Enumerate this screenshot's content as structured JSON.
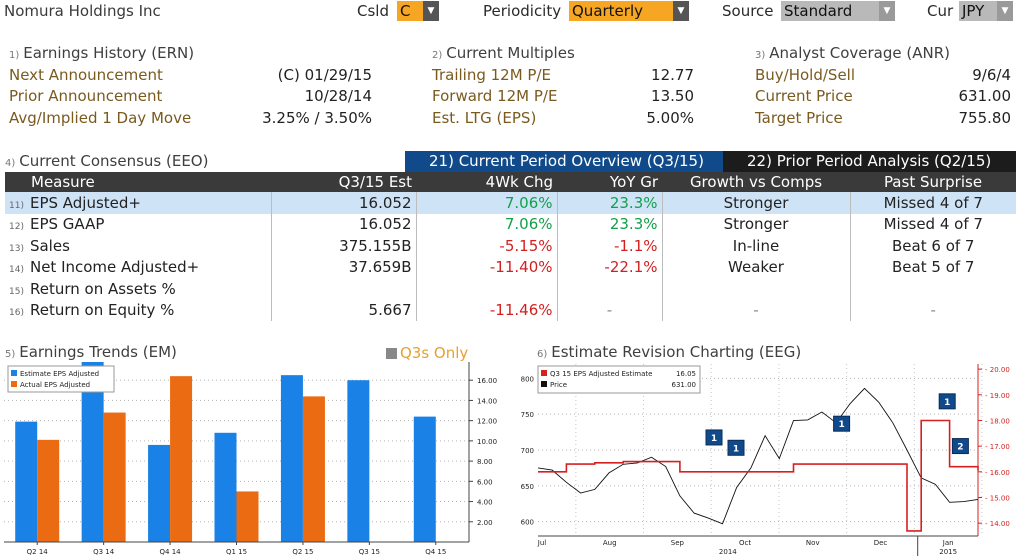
{
  "header": {
    "company": "Nomura Holdings Inc",
    "csld_label": "Csld",
    "csld_value": "C",
    "periodicity_label": "Periodicity",
    "periodicity_value": "Quarterly",
    "source_label": "Source",
    "source_value": "Standard",
    "cur_label": "Cur",
    "cur_value": "JPY"
  },
  "earnings_history": {
    "num": "1)",
    "title": "Earnings History (ERN)",
    "rows": [
      {
        "label": "Next Announcement",
        "value": "(C)  01/29/15"
      },
      {
        "label": "Prior Announcement",
        "value": "10/28/14"
      },
      {
        "label": "Avg/Implied 1 Day Move",
        "value": "3.25% / 3.50%"
      }
    ]
  },
  "current_multiples": {
    "num": "2)",
    "title": "Current Multiples",
    "rows": [
      {
        "label": "Trailing 12M P/E",
        "value": "12.77"
      },
      {
        "label": "Forward 12M P/E",
        "value": "13.50"
      },
      {
        "label": "Est. LTG (EPS)",
        "value": "5.00%"
      }
    ]
  },
  "analyst_coverage": {
    "num": "3)",
    "title": "Analyst Coverage (ANR)",
    "rows": [
      {
        "label": "Buy/Hold/Sell",
        "value": "9/6/4"
      },
      {
        "label": "Current Price",
        "value": "631.00"
      },
      {
        "label": "Target Price",
        "value": "755.80"
      }
    ]
  },
  "consensus": {
    "num": "4)",
    "title": "Current Consensus (EEO)",
    "tab_active": "21) Current Period Overview (Q3/15)",
    "tab_inactive": "22) Prior Period Analysis (Q2/15)",
    "columns": [
      "Measure",
      "Q3/15 Est",
      "4Wk Chg",
      "YoY Gr",
      "Growth vs Comps",
      "Past Surprise"
    ],
    "rows": [
      {
        "n": "11)",
        "measure": "EPS Adjusted+",
        "est": "16.052",
        "chg": "7.06%",
        "yoy": "23.3%",
        "growth": "Stronger",
        "surprise": "Missed 4 of 7"
      },
      {
        "n": "12)",
        "measure": "EPS GAAP",
        "est": "16.052",
        "chg": "7.06%",
        "yoy": "23.3%",
        "growth": "Stronger",
        "surprise": "Missed 4 of 7"
      },
      {
        "n": "13)",
        "measure": "Sales",
        "est": "375.155B",
        "chg": "-5.15%",
        "yoy": "-1.1%",
        "growth": "In-line",
        "surprise": "Beat 6 of 7"
      },
      {
        "n": "14)",
        "measure": "Net Income Adjusted+",
        "est": "37.659B",
        "chg": "-11.40%",
        "yoy": "-22.1%",
        "growth": "Weaker",
        "surprise": "Beat 5 of 7"
      },
      {
        "n": "15)",
        "measure": "Return on Assets %",
        "est": "",
        "chg": "",
        "yoy": "",
        "growth": "",
        "surprise": ""
      },
      {
        "n": "16)",
        "measure": "Return on Equity %",
        "est": "5.667",
        "chg": "-11.46%",
        "yoy": "-",
        "growth": "-",
        "surprise": "-"
      }
    ]
  },
  "earnings_trends": {
    "num": "5)",
    "title": "Earnings Trends (EM)",
    "q3s_label": "Q3s Only"
  },
  "estimate_revision": {
    "num": "6)",
    "title": "Estimate Revision Charting (EEG)"
  },
  "colors": {
    "estimate": "#1a82e6",
    "actual": "#ea6b12",
    "red_line": "#d62020",
    "accent_orange": "#f6a623",
    "tab_active": "#114a8a"
  },
  "chart_data": [
    {
      "type": "bar",
      "categories": [
        "Q2 14",
        "Q3 14",
        "Q4 14",
        "Q1 15",
        "Q2 15",
        "Q3 15",
        "Q4 15"
      ],
      "series": [
        {
          "name": "Estimate EPS Adjusted",
          "values": [
            11.9,
            17.8,
            9.6,
            10.8,
            16.5,
            16.0,
            12.4
          ]
        },
        {
          "name": "Actual EPS Adjusted",
          "values": [
            10.1,
            12.8,
            16.4,
            5.0,
            14.4,
            null,
            null
          ]
        }
      ],
      "legend": [
        {
          "label": "Estimate EPS Adjusted"
        },
        {
          "label": "Actual EPS Adjusted"
        }
      ],
      "ylim": [
        0,
        17.8
      ],
      "yticks": [
        "2.00",
        "4.00",
        "6.00",
        "8.00",
        "10.00",
        "12.00",
        "14.00",
        "16.00"
      ],
      "ytick_values": [
        2,
        4,
        6,
        8,
        10,
        12,
        14,
        16
      ],
      "legend_position": "top-left",
      "grid": true
    },
    {
      "type": "line",
      "x_labels": [
        "Jul",
        "Aug",
        "Sep",
        "Oct",
        "Nov",
        "Dec",
        "Jan"
      ],
      "x_year_labels": [
        "2014",
        "2015"
      ],
      "series": [
        {
          "name": "Q3 15 EPS Adjusted Estimate",
          "legend_value": "16.05",
          "axis": "right",
          "values": [
            16.0,
            16.0,
            16.3,
            16.3,
            16.35,
            16.35,
            16.4,
            16.4,
            16.4,
            16.4,
            16.0,
            16.0,
            16.0,
            16.0,
            16.0,
            16.0,
            16.0,
            16.0,
            16.3,
            16.3,
            16.3,
            16.3,
            16.3,
            16.3,
            16.3,
            16.3,
            13.7,
            18.0,
            18.0,
            16.2,
            16.2,
            16.05
          ]
        },
        {
          "name": "Price",
          "legend_value": "631.00",
          "axis": "left",
          "values": [
            675,
            672,
            655,
            640,
            645,
            668,
            680,
            682,
            690,
            677,
            636,
            612,
            605,
            597,
            648,
            675,
            720,
            688,
            741,
            742,
            753,
            738,
            765,
            786,
            767,
            738,
            700,
            661,
            652,
            627,
            628,
            631
          ]
        }
      ],
      "left_ylim": [
        580,
        820
      ],
      "left_yticks": [
        "600",
        "650",
        "700",
        "750",
        "800"
      ],
      "left_ytick_values": [
        600,
        650,
        700,
        750,
        800
      ],
      "right_ylim": [
        13.5,
        20.2
      ],
      "right_yticks": [
        "14.00",
        "15.00",
        "16.00",
        "17.00",
        "18.00",
        "19.00",
        "20.00"
      ],
      "right_ytick_values": [
        14,
        15,
        16,
        17,
        18,
        19,
        20
      ],
      "markers": [
        "1",
        "1",
        "1",
        "1",
        "2"
      ],
      "legend_position": "top-left",
      "grid": true
    }
  ]
}
